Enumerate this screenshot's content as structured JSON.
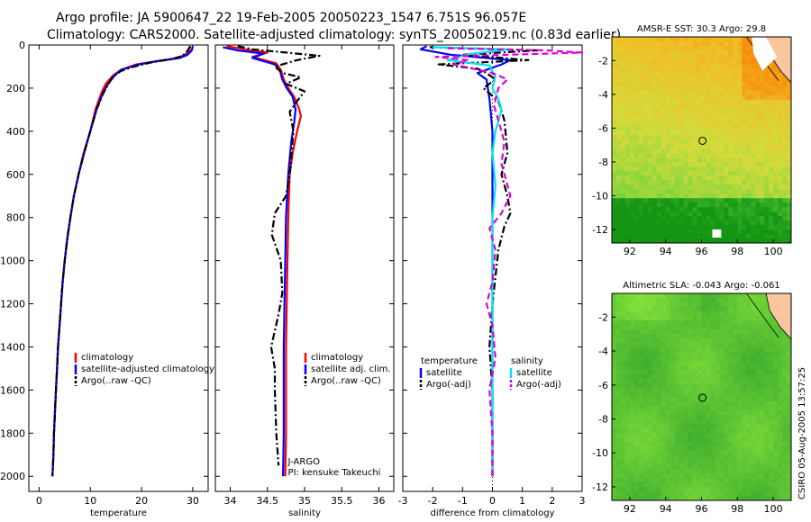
{
  "header": {
    "line1": "Argo profile: JA 5900647_22 19-Feb-2005 20050223_1547 6.751S 96.057E",
    "line2": "Climatology: CARS2000. Satellite-adjusted climatology: synTS_20050219.nc (0.83d earlier)"
  },
  "colors": {
    "climatology": "#ff0000",
    "satellite": "#0000ff",
    "argo": "#000000",
    "salinity_sat": "#00e5ee",
    "salinity_argo": "#dd00dd"
  },
  "footer": {
    "credit": "CSIRO 05-Aug-2005 13:57:25"
  },
  "chart_data": [
    {
      "type": "line",
      "xlabel": "temperature",
      "xticks": [
        0,
        10,
        20,
        30
      ],
      "yticks": [
        0,
        200,
        400,
        600,
        800,
        1000,
        1200,
        1400,
        1600,
        1800,
        2000
      ],
      "xlim": [
        -2,
        33
      ],
      "ylim": [
        0,
        2070
      ],
      "y_inverted": true,
      "legend": [
        "climatology",
        "satellite-adjusted climatology",
        "Argo(..raw -QC)"
      ],
      "series": [
        {
          "name": "climatology",
          "style": "solid",
          "color": "#ff0000",
          "points": [
            [
              29.5,
              5
            ],
            [
              29.3,
              25
            ],
            [
              28.5,
              45
            ],
            [
              27,
              60
            ],
            [
              23,
              75
            ],
            [
              19,
              90
            ],
            [
              16,
              115
            ],
            [
              14.5,
              140
            ],
            [
              13,
              180
            ],
            [
              12.2,
              220
            ],
            [
              11,
              300
            ],
            [
              10,
              400
            ],
            [
              8.7,
              500
            ],
            [
              7.7,
              600
            ],
            [
              6.8,
              700
            ],
            [
              6.1,
              800
            ],
            [
              5.5,
              900
            ],
            [
              5,
              1000
            ],
            [
              4.6,
              1100
            ],
            [
              4.3,
              1200
            ],
            [
              4,
              1300
            ],
            [
              3.7,
              1400
            ],
            [
              3.5,
              1500
            ],
            [
              3.3,
              1600
            ],
            [
              3.1,
              1700
            ],
            [
              2.9,
              1800
            ],
            [
              2.8,
              1900
            ],
            [
              2.6,
              2000
            ]
          ]
        },
        {
          "name": "satellite-adjusted climatology",
          "style": "solid",
          "color": "#0000ff",
          "points": [
            [
              30,
              5
            ],
            [
              29.8,
              25
            ],
            [
              29,
              45
            ],
            [
              27.5,
              60
            ],
            [
              23,
              75
            ],
            [
              19.5,
              90
            ],
            [
              16,
              115
            ],
            [
              14.8,
              140
            ],
            [
              13.5,
              180
            ],
            [
              12.5,
              220
            ],
            [
              11.2,
              300
            ],
            [
              10,
              400
            ],
            [
              8.8,
              500
            ],
            [
              7.7,
              600
            ],
            [
              6.8,
              700
            ],
            [
              6.1,
              800
            ],
            [
              5.5,
              900
            ],
            [
              5,
              1000
            ],
            [
              4.6,
              1100
            ],
            [
              4.3,
              1200
            ],
            [
              4,
              1300
            ],
            [
              3.7,
              1400
            ],
            [
              3.5,
              1500
            ],
            [
              3.3,
              1600
            ],
            [
              3.1,
              1700
            ],
            [
              2.9,
              1800
            ],
            [
              2.8,
              1900
            ],
            [
              2.6,
              2000
            ]
          ]
        },
        {
          "name": "Argo(..raw -QC)",
          "style": "dashdot",
          "color": "#000000",
          "points": [
            [
              29.5,
              5
            ],
            [
              29,
              25
            ],
            [
              28,
              50
            ],
            [
              26,
              65
            ],
            [
              22,
              80
            ],
            [
              18.5,
              100
            ],
            [
              16,
              120
            ],
            [
              14.3,
              150
            ],
            [
              13.3,
              190
            ],
            [
              12.4,
              230
            ],
            [
              11.2,
              300
            ],
            [
              10,
              400
            ],
            [
              8.8,
              500
            ],
            [
              7.7,
              600
            ],
            [
              6.8,
              700
            ],
            [
              6.1,
              800
            ],
            [
              5.5,
              900
            ],
            [
              5,
              1000
            ],
            [
              4.6,
              1100
            ],
            [
              4.3,
              1200
            ],
            [
              4,
              1300
            ],
            [
              3.7,
              1400
            ],
            [
              3.5,
              1500
            ],
            [
              3.3,
              1600
            ],
            [
              3.1,
              1700
            ],
            [
              2.9,
              1800
            ],
            [
              2.8,
              1900
            ],
            [
              2.6,
              2000
            ]
          ]
        }
      ]
    },
    {
      "type": "line",
      "xlabel": "salinity",
      "xticks": [
        34,
        34.5,
        35,
        35.5,
        36
      ],
      "xlim": [
        33.8,
        36.2
      ],
      "ylim": [
        0,
        2070
      ],
      "y_inverted": true,
      "legend": [
        "climatology",
        "satellite adj. clim.",
        "Argo(..raw -QC)"
      ],
      "annotation": [
        "J-ARGO",
        "PI: kensuke Takeuchi"
      ],
      "series": [
        {
          "name": "climatology",
          "style": "solid",
          "color": "#ff0000",
          "points": [
            [
              33.95,
              5
            ],
            [
              34.2,
              20
            ],
            [
              34.5,
              35
            ],
            [
              34.3,
              55
            ],
            [
              34.62,
              85
            ],
            [
              34.68,
              115
            ],
            [
              34.72,
              160
            ],
            [
              34.78,
              200
            ],
            [
              34.86,
              240
            ],
            [
              34.93,
              300
            ],
            [
              34.95,
              330
            ],
            [
              34.9,
              400
            ],
            [
              34.84,
              500
            ],
            [
              34.8,
              600
            ],
            [
              34.78,
              800
            ],
            [
              34.77,
              1000
            ],
            [
              34.76,
              1200
            ],
            [
              34.75,
              1400
            ],
            [
              34.75,
              1600
            ],
            [
              34.75,
              1800
            ],
            [
              34.74,
              2000
            ]
          ]
        },
        {
          "name": "satellite adj. clim.",
          "style": "solid",
          "color": "#0000ff",
          "points": [
            [
              33.9,
              10
            ],
            [
              34.1,
              25
            ],
            [
              34.45,
              40
            ],
            [
              34.3,
              60
            ],
            [
              34.6,
              90
            ],
            [
              34.67,
              120
            ],
            [
              34.7,
              160
            ],
            [
              34.76,
              200
            ],
            [
              34.84,
              240
            ],
            [
              34.88,
              300
            ],
            [
              34.86,
              360
            ],
            [
              34.82,
              450
            ],
            [
              34.78,
              600
            ],
            [
              34.75,
              800
            ],
            [
              34.74,
              1000
            ],
            [
              34.73,
              1200
            ],
            [
              34.72,
              1400
            ],
            [
              34.72,
              1600
            ],
            [
              34.72,
              1800
            ],
            [
              34.71,
              2000
            ]
          ]
        },
        {
          "name": "Argo(..raw -QC)",
          "style": "dashdot",
          "color": "#000000",
          "points": [
            [
              34.1,
              5
            ],
            [
              34.3,
              20
            ],
            [
              34.75,
              35
            ],
            [
              35.2,
              50
            ],
            [
              34.9,
              70
            ],
            [
              34.6,
              100
            ],
            [
              34.7,
              130
            ],
            [
              34.95,
              150
            ],
            [
              34.75,
              180
            ],
            [
              35,
              215
            ],
            [
              34.9,
              260
            ],
            [
              34.8,
              310
            ],
            [
              34.85,
              400
            ],
            [
              34.8,
              600
            ],
            [
              34.75,
              700
            ],
            [
              34.6,
              780
            ],
            [
              34.56,
              880
            ],
            [
              34.68,
              1000
            ],
            [
              34.7,
              1150
            ],
            [
              34.65,
              1250
            ],
            [
              34.55,
              1400
            ],
            [
              34.6,
              1500
            ],
            [
              34.6,
              1600
            ],
            [
              34.62,
              1800
            ],
            [
              34.65,
              1950
            ]
          ]
        }
      ]
    },
    {
      "type": "line",
      "xlabel": "difference from climatology",
      "xticks": [
        -3,
        -2,
        -1,
        0,
        1,
        2,
        3
      ],
      "xlim": [
        -3,
        3
      ],
      "ylim": [
        0,
        2070
      ],
      "y_inverted": true,
      "legend": [
        "temperature",
        "satellite",
        "Argo(-adj)",
        "salinity",
        "satellite",
        "Argo(-adj)"
      ],
      "series": [
        {
          "name": "temperature satellite",
          "style": "solid",
          "color": "#0000ff",
          "points": [
            [
              -2.2,
              5
            ],
            [
              -2.4,
              20
            ],
            [
              -1.4,
              45
            ],
            [
              0.6,
              70
            ],
            [
              0.3,
              90
            ],
            [
              -0.5,
              130
            ],
            [
              -0.2,
              160
            ],
            [
              -0.1,
              250
            ],
            [
              0,
              400
            ],
            [
              0,
              1000
            ],
            [
              0,
              2000
            ]
          ]
        },
        {
          "name": "temperature Argo(-adj)",
          "style": "dashdot",
          "color": "#000000",
          "points": [
            [
              -2.1,
              10
            ],
            [
              1.5,
              25
            ],
            [
              -1,
              45
            ],
            [
              1.2,
              70
            ],
            [
              -1.8,
              90
            ],
            [
              -0.5,
              110
            ],
            [
              -0.2,
              130
            ],
            [
              0.1,
              160
            ],
            [
              -0.3,
              200
            ],
            [
              0.2,
              260
            ],
            [
              0.4,
              350
            ],
            [
              0.5,
              500
            ],
            [
              0.3,
              600
            ],
            [
              0.5,
              700
            ],
            [
              0.6,
              780
            ],
            [
              0.4,
              840
            ],
            [
              0.2,
              950
            ],
            [
              0,
              1200
            ],
            [
              -0.1,
              1400
            ],
            [
              0,
              1600
            ],
            [
              0,
              2000
            ]
          ]
        },
        {
          "name": "salinity satellite",
          "style": "solid",
          "color": "#00e5ee",
          "points": [
            [
              -2,
              10
            ],
            [
              0.6,
              20
            ],
            [
              -0.7,
              40
            ],
            [
              -1.5,
              70
            ],
            [
              -0.1,
              95
            ],
            [
              0.1,
              150
            ],
            [
              0,
              200
            ],
            [
              0.2,
              250
            ],
            [
              0.3,
              300
            ],
            [
              0.1,
              400
            ],
            [
              0,
              500
            ],
            [
              0.1,
              650
            ],
            [
              0,
              800
            ],
            [
              0,
              2000
            ]
          ]
        },
        {
          "name": "salinity Argo(-adj)",
          "style": "dash",
          "color": "#dd00dd",
          "points": [
            [
              -1.5,
              15
            ],
            [
              1.8,
              25
            ],
            [
              3,
              35
            ],
            [
              -1.9,
              55
            ],
            [
              -0.8,
              70
            ],
            [
              -1.3,
              90
            ],
            [
              0,
              130
            ],
            [
              0.5,
              160
            ],
            [
              0.2,
              200
            ],
            [
              0.05,
              280
            ],
            [
              0.2,
              350
            ],
            [
              0.4,
              450
            ],
            [
              0.3,
              550
            ],
            [
              0.6,
              700
            ],
            [
              0.3,
              780
            ],
            [
              -0.1,
              850
            ],
            [
              0.1,
              950
            ],
            [
              0,
              1100
            ],
            [
              -0.2,
              1200
            ],
            [
              0,
              1300
            ],
            [
              0.1,
              1450
            ],
            [
              -0.1,
              1600
            ],
            [
              0,
              1800
            ],
            [
              0,
              2000
            ]
          ]
        }
      ]
    },
    {
      "type": "heatmap",
      "title": "AMSR-E SST: 30.3 Argo: 29.8",
      "xticks": [
        92,
        94,
        96,
        98,
        100
      ],
      "yticks": [
        -2,
        -4,
        -6,
        -8,
        -10,
        -12
      ],
      "xlim": [
        91,
        101
      ],
      "ylim": [
        -12.8,
        -0.6
      ],
      "marker": [
        96.057,
        -6.751
      ],
      "colormap": "green-yellow-orange"
    },
    {
      "type": "heatmap",
      "title": "Altimetric SLA: -0.043 Argo: -0.061",
      "xticks": [
        92,
        94,
        96,
        98,
        100
      ],
      "yticks": [
        -2,
        -4,
        -6,
        -8,
        -10,
        -12
      ],
      "xlim": [
        91,
        101
      ],
      "ylim": [
        -12.8,
        -0.6
      ],
      "marker": [
        96.057,
        -6.751
      ],
      "colormap": "green"
    }
  ]
}
